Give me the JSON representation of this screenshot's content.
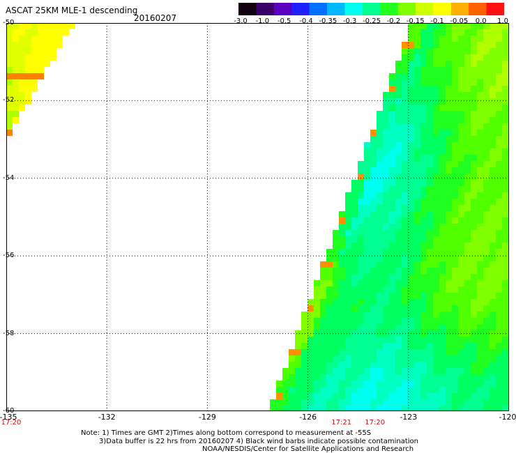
{
  "header": {
    "title": "ASCAT 25KM MLE-1 descending",
    "date": "20160207"
  },
  "colorbar": {
    "colors": [
      "#100010",
      "#3a0068",
      "#5a00c0",
      "#2020ff",
      "#0070ff",
      "#00b8ff",
      "#00ffee",
      "#00ff90",
      "#20ff20",
      "#80ff00",
      "#d0ff00",
      "#ffff00",
      "#ffb000",
      "#ff6000",
      "#ff1010"
    ],
    "ticks": [
      "-3.0",
      "-1.0",
      "-0.5",
      "-0.4",
      "-0.35",
      "-0.3",
      "-0.25",
      "-0.2",
      "-0.15",
      "-0.1",
      "-0.05",
      "0.0",
      "1.0"
    ]
  },
  "map": {
    "lon_range": [
      -135,
      -120
    ],
    "lat_range": [
      -60,
      -50
    ],
    "lon_ticks": [
      "-135",
      "-132",
      "-129",
      "-126",
      "-123",
      "-120"
    ],
    "lat_ticks": [
      "-50",
      "-52",
      "-54",
      "-56",
      "-58",
      "-60"
    ],
    "grid": true
  },
  "time_labels": [
    {
      "lon": -135,
      "text": "17:20"
    },
    {
      "lon": -125,
      "text": "17:21"
    },
    {
      "lon": -124,
      "text": "17:20"
    }
  ],
  "notes": [
    "Note: 1) Times are GMT 2)Times along bottom correspond to measurement at -55S",
    "3)Data buffer is 22 hrs from 20160207 4) Black wind barbs indicate possible contamination",
    "NOAA/NESDIS/Center for Satellite Applications and Research"
  ]
}
